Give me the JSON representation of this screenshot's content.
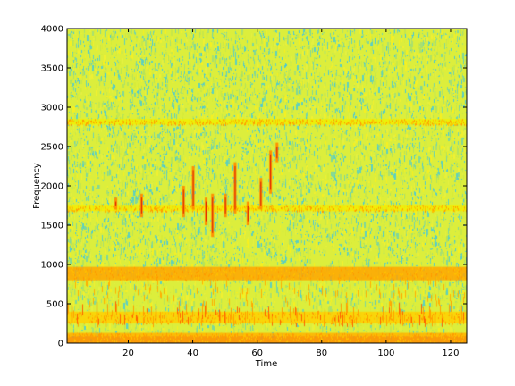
{
  "chart_data": {
    "type": "heatmap",
    "title": "",
    "xlabel": "Time",
    "ylabel": "Frequency",
    "xlim": [
      1,
      125
    ],
    "ylim": [
      0,
      4000
    ],
    "x_ticks": [
      20,
      40,
      60,
      80,
      100,
      120
    ],
    "y_ticks": [
      0,
      500,
      1000,
      1500,
      2000,
      2500,
      3000,
      3500,
      4000
    ],
    "colormap": "jet",
    "background_level": "yellow-green with cyan speckle",
    "bands": [
      {
        "freq_min": 0,
        "freq_max": 90,
        "color": "#ff8c00",
        "description": "strong orange band"
      },
      {
        "freq_min": 90,
        "freq_max": 130,
        "color": "#ffb000"
      },
      {
        "freq_min": 250,
        "freq_max": 400,
        "color": "#ffd000"
      },
      {
        "freq_min": 800,
        "freq_max": 970,
        "color": "#ffa500",
        "description": "strong orange band"
      },
      {
        "freq_min": 1680,
        "freq_max": 1760,
        "color": "#f5ec00"
      },
      {
        "freq_min": 2780,
        "freq_max": 2850,
        "color": "#f0f000"
      }
    ],
    "vertical_streaks": [
      {
        "time": 16,
        "freq_min": 1700,
        "freq_max": 1850
      },
      {
        "time": 24,
        "freq_min": 1600,
        "freq_max": 1900
      },
      {
        "time": 37,
        "freq_min": 1600,
        "freq_max": 2000
      },
      {
        "time": 40,
        "freq_min": 1700,
        "freq_max": 2250
      },
      {
        "time": 44,
        "freq_min": 1500,
        "freq_max": 1850
      },
      {
        "time": 46,
        "freq_min": 1350,
        "freq_max": 1900
      },
      {
        "time": 50,
        "freq_min": 1600,
        "freq_max": 1900
      },
      {
        "time": 53,
        "freq_min": 1650,
        "freq_max": 2300
      },
      {
        "time": 57,
        "freq_min": 1500,
        "freq_max": 1800
      },
      {
        "time": 61,
        "freq_min": 1700,
        "freq_max": 2100
      },
      {
        "time": 64,
        "freq_min": 1900,
        "freq_max": 2450
      },
      {
        "time": 66,
        "freq_min": 2300,
        "freq_max": 2550
      }
    ]
  }
}
